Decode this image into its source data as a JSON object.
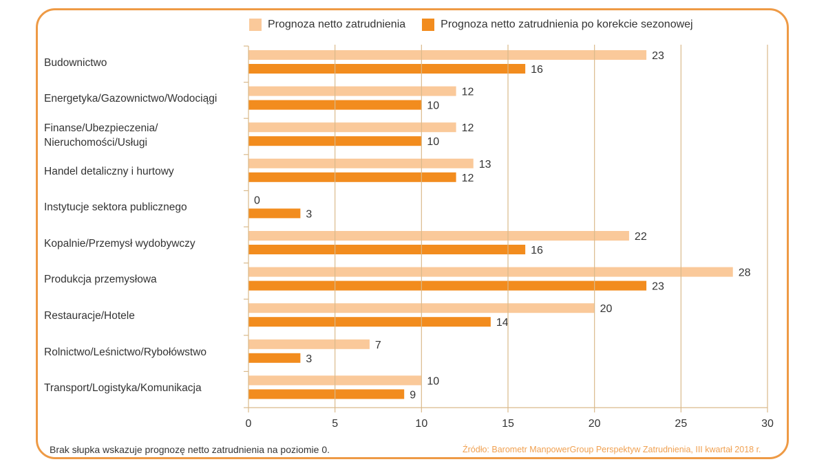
{
  "colors": {
    "series_light": "#FAC99A",
    "series_dark": "#F28C1E",
    "grid": "#D9B98A",
    "frame": "#EE9A45",
    "source_text": "#F0A050"
  },
  "footnote": "Brak słupka wskazuje prognozę netto zatrudnienia na poziomie 0.",
  "source": "Źródło: Barometr ManpowerGroup Perspektyw Zatrudnienia, III kwartał 2018 r.",
  "chart_data": {
    "type": "bar",
    "orientation": "horizontal",
    "title": "",
    "xlabel": "",
    "ylabel": "",
    "xlim": [
      0,
      30
    ],
    "xticks": [
      0,
      5,
      10,
      15,
      20,
      25,
      30
    ],
    "grid": true,
    "legend_position": "top",
    "categories": [
      [
        "Budownictwo"
      ],
      [
        "Energetyka/Gazownictwo/Wodociągi"
      ],
      [
        "Finanse/Ubezpieczenia/",
        "Nieruchomości/Usługi"
      ],
      [
        "Handel detaliczny i hurtowy"
      ],
      [
        "Instytucje sektora publicznego"
      ],
      [
        "Kopalnie/Przemysł wydobywczy"
      ],
      [
        "Produkcja przemysłowa"
      ],
      [
        "Restauracje/Hotele"
      ],
      [
        "Rolnictwo/Leśnictwo/Rybołówstwo"
      ],
      [
        "Transport/Logistyka/Komunikacja"
      ]
    ],
    "series": [
      {
        "name": "Prognoza netto zatrudnienia",
        "color": "#FAC99A",
        "values": [
          23,
          12,
          12,
          13,
          0,
          22,
          28,
          20,
          7,
          10
        ]
      },
      {
        "name": "Prognoza netto zatrudnienia po korekcie sezonowej",
        "color": "#F28C1E",
        "values": [
          16,
          10,
          10,
          12,
          3,
          16,
          23,
          14,
          3,
          9
        ]
      }
    ]
  }
}
